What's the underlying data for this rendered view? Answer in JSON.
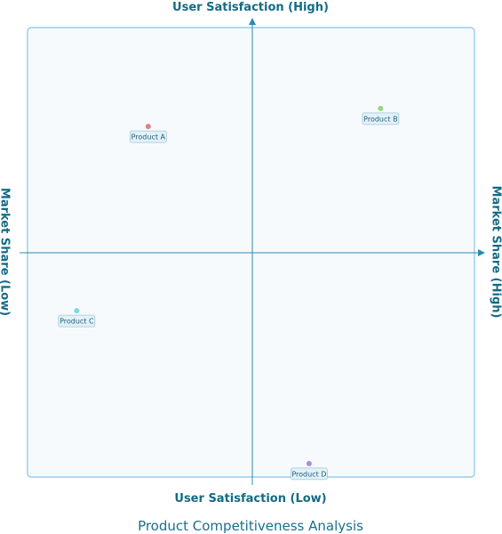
{
  "chart_data": {
    "type": "quadrant",
    "title": "Product Competitiveness Analysis",
    "x_axis": {
      "low_label": "Market Share (Low)",
      "high_label": "Market Share (High)"
    },
    "y_axis": {
      "low_label": "User Satisfaction (Low)",
      "high_label": "User Satisfaction (High)"
    },
    "xlim": [
      0,
      1
    ],
    "ylim": [
      0,
      1
    ],
    "points": [
      {
        "label": "Product A",
        "x": 0.27,
        "y": 0.78,
        "color": "#e47f86"
      },
      {
        "label": "Product B",
        "x": 0.79,
        "y": 0.82,
        "color": "#98d87a"
      },
      {
        "label": "Product C",
        "x": 0.11,
        "y": 0.37,
        "color": "#7fd9de"
      },
      {
        "label": "Product D",
        "x": 0.63,
        "y": 0.03,
        "color": "#b08ad6"
      }
    ]
  }
}
